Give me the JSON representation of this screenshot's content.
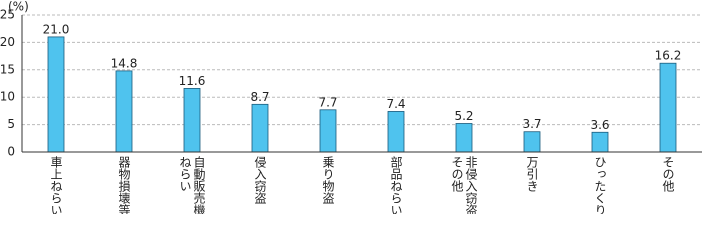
{
  "chart_data": {
    "type": "bar",
    "unit": "(%)",
    "categories": [
      "車上ねらい",
      "器物損壊等",
      "自動販売機ねらい",
      "侵入窃盗",
      "乗り物盗",
      "部品ねらい",
      "非侵入窃盗その他",
      "万引き",
      "ひったくり",
      "その他"
    ],
    "values": [
      21.0,
      14.8,
      11.6,
      8.7,
      7.7,
      7.4,
      5.2,
      3.7,
      3.6,
      16.2
    ],
    "value_labels": [
      "21.0",
      "14.8",
      "11.6",
      "8.7",
      "7.7",
      "7.4",
      "5.2",
      "3.7",
      "3.6",
      "16.2"
    ],
    "color": "#4fc3ee",
    "ylim": [
      0,
      25
    ],
    "yticks": [
      0,
      5,
      10,
      15,
      20,
      25
    ],
    "grid": true
  }
}
